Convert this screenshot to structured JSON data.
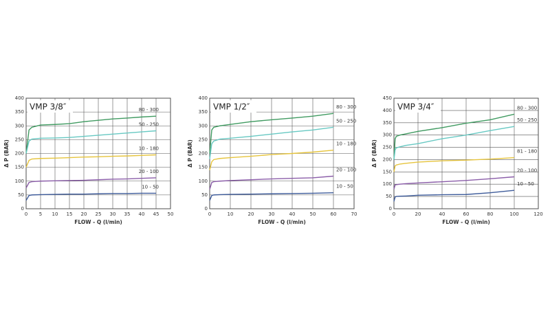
{
  "chart_data": [
    {
      "type": "line",
      "title": "VMP 3/8″",
      "xlabel": "FLOW - Q (l/min)",
      "ylabel": "Δ P (BAR)",
      "x": [
        0,
        1,
        2,
        5,
        10,
        15,
        20,
        25,
        30,
        35,
        40,
        45
      ],
      "xlim": [
        0,
        50
      ],
      "xticks": [
        0,
        5,
        10,
        15,
        20,
        25,
        30,
        35,
        40,
        45,
        50
      ],
      "ylim": [
        0,
        400
      ],
      "yticks": [
        0,
        50,
        100,
        150,
        200,
        250,
        300,
        350,
        400
      ],
      "grid": true,
      "series": [
        {
          "name": "80 - 300",
          "color": "#3f9a60",
          "values": [
            200,
            285,
            295,
            303,
            305,
            308,
            315,
            320,
            325,
            328,
            332,
            335
          ]
        },
        {
          "name": "50 - 250",
          "color": "#66c8c2",
          "values": [
            200,
            245,
            252,
            255,
            256,
            258,
            262,
            266,
            270,
            274,
            278,
            282
          ]
        },
        {
          "name": "10 - 180",
          "color": "#e6c43c",
          "values": [
            150,
            175,
            180,
            182,
            183,
            185,
            187,
            188,
            190,
            191,
            193,
            195
          ]
        },
        {
          "name": "20 - 100",
          "color": "#8a5ca8",
          "values": [
            75,
            95,
            98,
            100,
            101,
            102,
            103,
            105,
            107,
            108,
            110,
            112
          ]
        },
        {
          "name": "10 - 50",
          "color": "#3d5b9a",
          "values": [
            30,
            48,
            50,
            51,
            52,
            53,
            53,
            54,
            55,
            55,
            56,
            56
          ]
        }
      ]
    },
    {
      "type": "line",
      "title": "VMP 1/2″",
      "xlabel": "FLOW - Q (l/min)",
      "ylabel": "Δ P (BAR)",
      "x": [
        0,
        1,
        2,
        5,
        10,
        20,
        30,
        40,
        50,
        60
      ],
      "xlim": [
        0,
        70
      ],
      "xticks": [
        0,
        10,
        20,
        30,
        40,
        50,
        60,
        70
      ],
      "ylim": [
        0,
        400
      ],
      "yticks": [
        0,
        50,
        100,
        150,
        200,
        250,
        300,
        350,
        400
      ],
      "grid": true,
      "series": [
        {
          "name": "80 - 300",
          "color": "#3f9a60",
          "values": [
            200,
            285,
            295,
            300,
            305,
            315,
            322,
            328,
            335,
            345
          ]
        },
        {
          "name": "50 - 250",
          "color": "#66c8c2",
          "values": [
            180,
            235,
            245,
            252,
            255,
            262,
            270,
            278,
            285,
            295
          ]
        },
        {
          "name": "10 - 180",
          "color": "#e6c43c",
          "values": [
            140,
            170,
            178,
            182,
            185,
            190,
            196,
            200,
            205,
            212
          ]
        },
        {
          "name": "20 - 100",
          "color": "#8a5ca8",
          "values": [
            70,
            95,
            98,
            100,
            102,
            105,
            108,
            110,
            112,
            118
          ]
        },
        {
          "name": "10 - 50",
          "color": "#3d5b9a",
          "values": [
            30,
            48,
            50,
            51,
            52,
            53,
            54,
            55,
            56,
            58
          ]
        }
      ]
    },
    {
      "type": "line",
      "title": "VMP 3/4″",
      "xlabel": "FLOW - Q (l/min)",
      "ylabel": "Δ P (BAR)",
      "x": [
        0,
        1,
        2,
        5,
        10,
        20,
        40,
        60,
        80,
        100
      ],
      "xlim": [
        0,
        120
      ],
      "xticks": [
        0,
        20,
        40,
        60,
        80,
        100,
        120
      ],
      "ylim": [
        0,
        450
      ],
      "yticks": [
        0,
        50,
        100,
        150,
        200,
        250,
        300,
        350,
        400,
        450
      ],
      "grid": true,
      "series": [
        {
          "name": "80 - 300",
          "color": "#3f9a60",
          "values": [
            200,
            285,
            295,
            300,
            305,
            315,
            330,
            348,
            362,
            385
          ]
        },
        {
          "name": "50 - 250",
          "color": "#66c8c2",
          "values": [
            200,
            240,
            248,
            252,
            258,
            265,
            285,
            300,
            318,
            335
          ]
        },
        {
          "name": "81 - 180",
          "color": "#e6c43c",
          "values": [
            150,
            175,
            178,
            182,
            185,
            190,
            195,
            198,
            202,
            208
          ]
        },
        {
          "name": "20 - 100",
          "color": "#8a5ca8",
          "values": [
            80,
            97,
            98,
            100,
            102,
            105,
            110,
            115,
            122,
            130
          ]
        },
        {
          "name": "10 - 50",
          "color": "#3d5b9a",
          "values": [
            30,
            48,
            50,
            51,
            52,
            55,
            57,
            58,
            65,
            75
          ]
        }
      ]
    }
  ]
}
